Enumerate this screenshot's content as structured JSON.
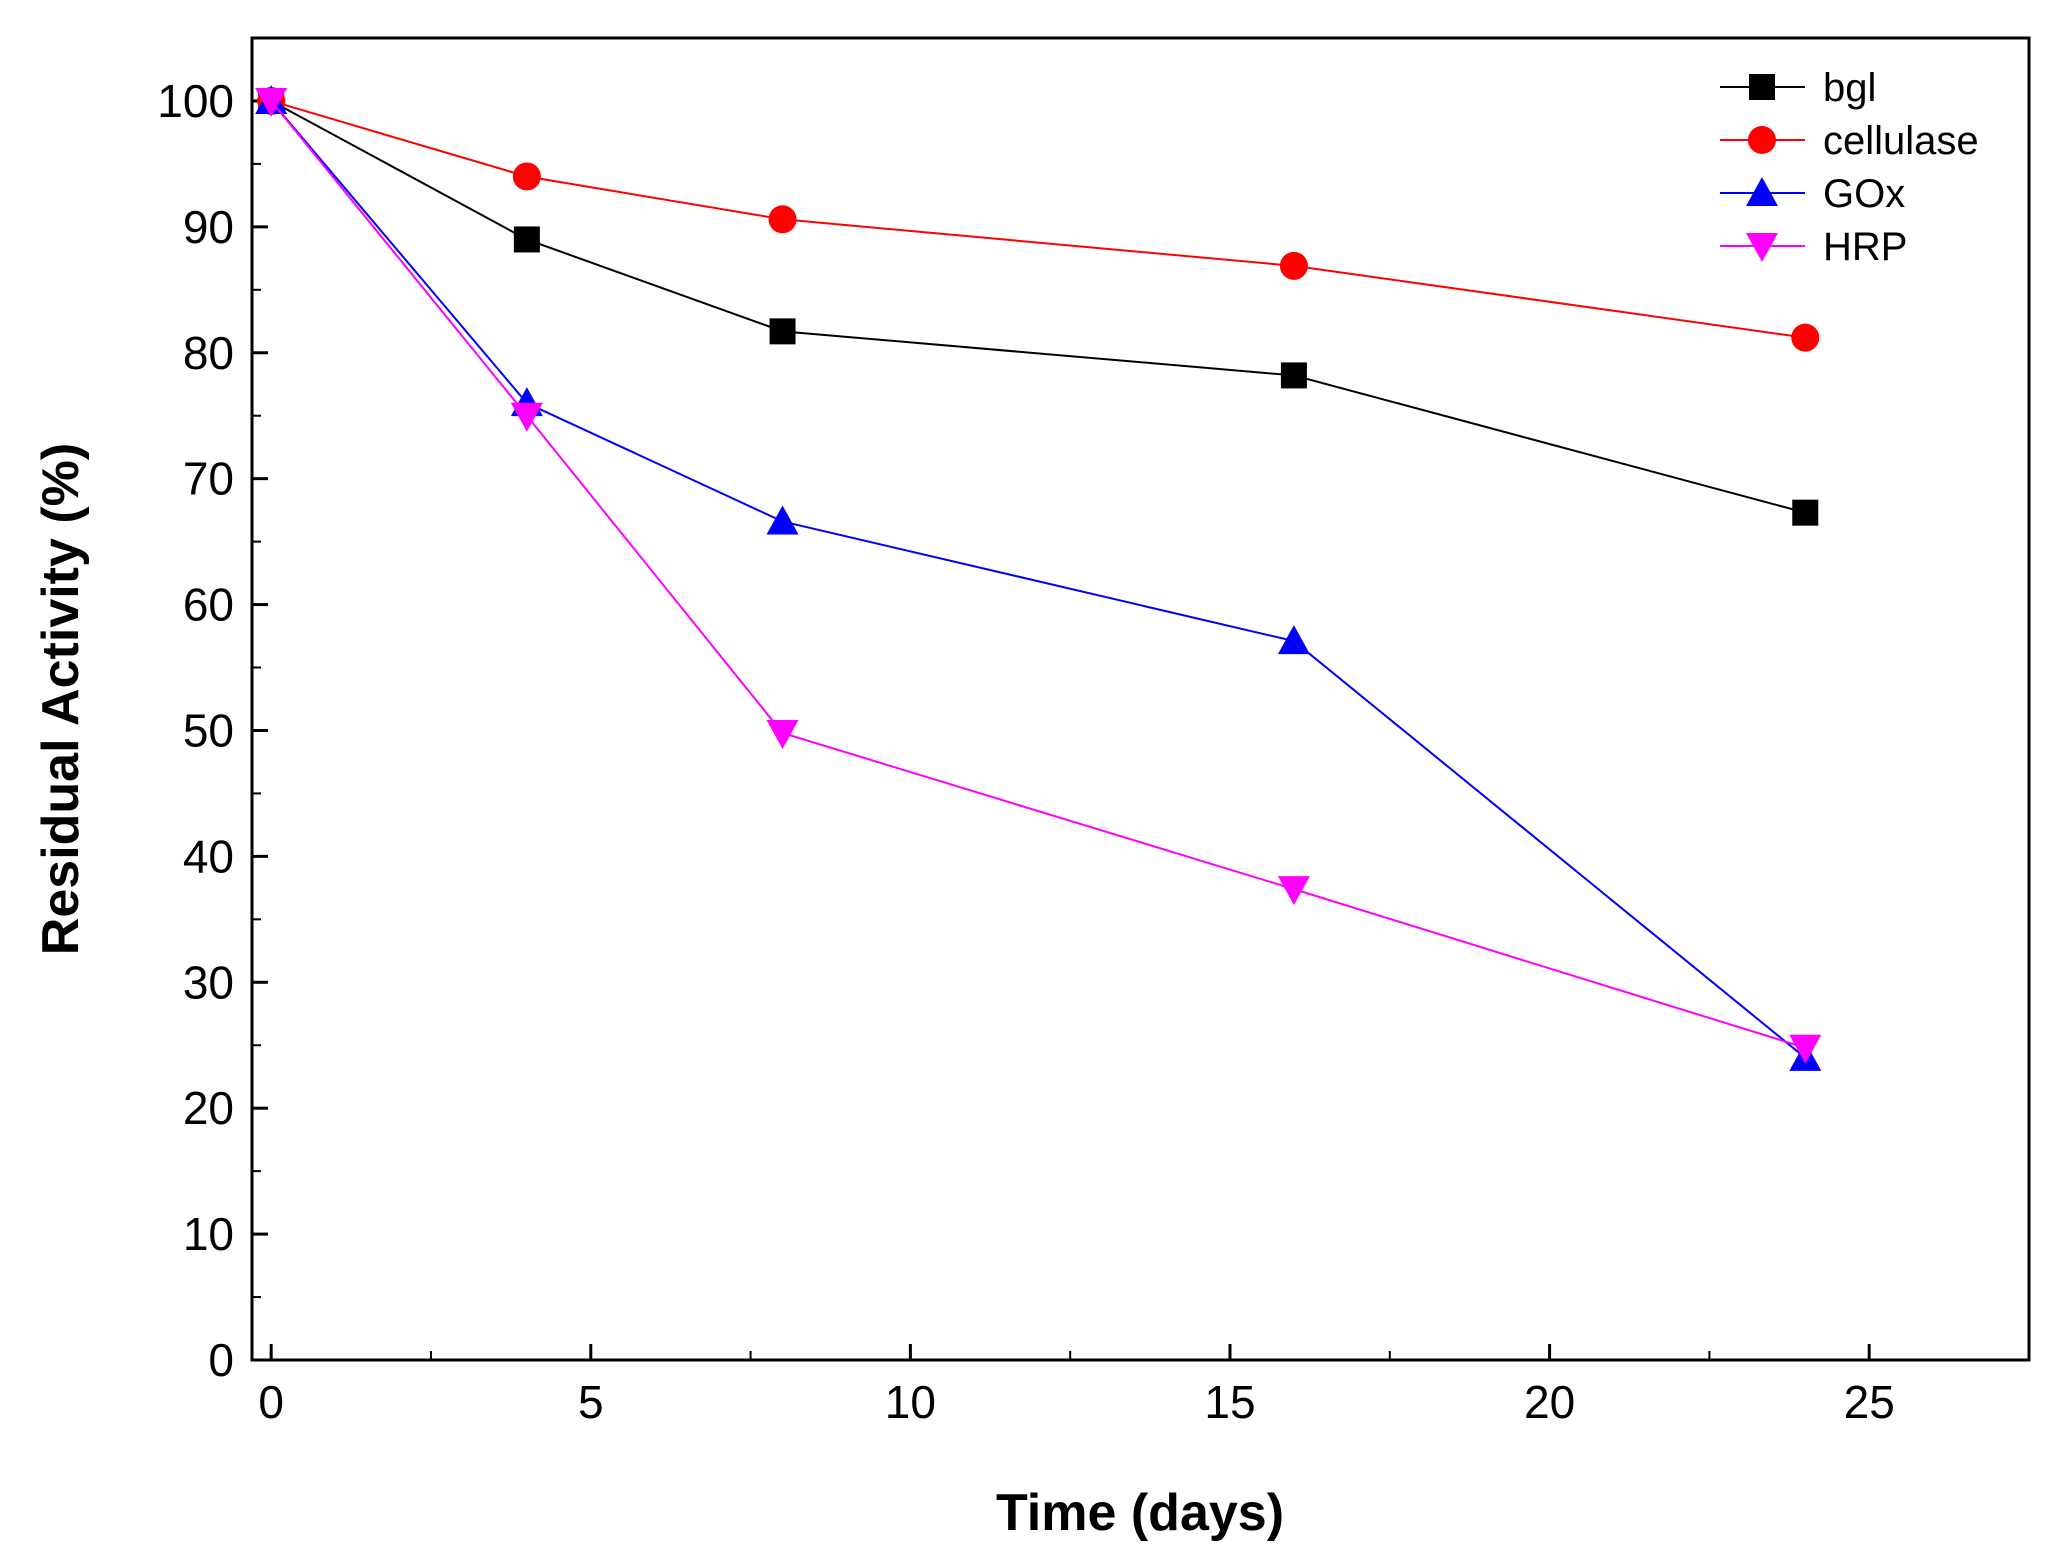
{
  "chart_data": {
    "type": "line",
    "title": "",
    "xlabel": "Time (days)",
    "ylabel": "Residual Activity (%)",
    "xlim": [
      -0.3,
      27.5
    ],
    "ylim": [
      0,
      105
    ],
    "x_ticks": [
      0,
      5,
      10,
      15,
      20,
      25
    ],
    "x_minor_ticks": [
      2.5,
      7.5,
      12.5,
      17.5,
      22.5
    ],
    "y_ticks": [
      0,
      10,
      20,
      30,
      40,
      50,
      60,
      70,
      80,
      90,
      100
    ],
    "y_minor_ticks": [
      5,
      15,
      25,
      35,
      45,
      55,
      65,
      75,
      85,
      95
    ],
    "grid": false,
    "legend_position": "top-right",
    "x": [
      0,
      4,
      8,
      16,
      24
    ],
    "series": [
      {
        "name": "bgl",
        "marker": "square",
        "color": "#000000",
        "values": [
          100,
          89,
          81.7,
          78.2,
          67.3
        ]
      },
      {
        "name": "cellulase",
        "marker": "circle",
        "color": "#ff0000",
        "values": [
          100,
          94,
          90.6,
          86.9,
          81.2
        ]
      },
      {
        "name": "GOx",
        "marker": "triangle-up",
        "color": "#0000ff",
        "values": [
          100,
          76,
          66.6,
          57.1,
          24
        ]
      },
      {
        "name": "HRP",
        "marker": "triangle-down",
        "color": "#ff00ff",
        "values": [
          100,
          75,
          49.8,
          37.4,
          24.8
        ]
      }
    ]
  }
}
